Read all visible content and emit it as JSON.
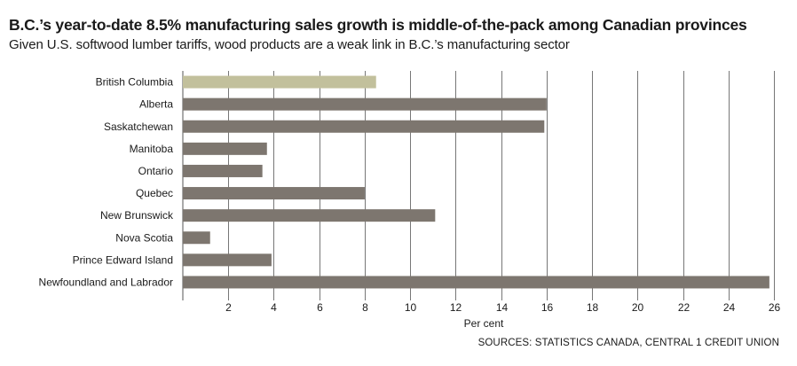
{
  "title": "B.C.’s year-to-date 8.5% manufacturing sales growth is middle-of-the-pack among Canadian provinces",
  "subtitle": "Given U.S. softwood lumber tariffs, wood products are a weak link in B.C.’s manufacturing sector",
  "source": "SOURCES: STATISTICS CANADA, CENTRAL 1 CREDIT UNION",
  "colors": {
    "highlight": "#c2c09c",
    "bar": "#7d766f",
    "grid": "#555555"
  },
  "chart_data": {
    "type": "bar",
    "orientation": "horizontal",
    "categories": [
      "British Columbia",
      "Alberta",
      "Saskatchewan",
      "Manitoba",
      "Ontario",
      "Quebec",
      "New Brunswick",
      "Nova Scotia",
      "Prince Edward Island",
      "Newfoundland and Labrador"
    ],
    "values": [
      8.5,
      16.0,
      15.9,
      3.7,
      3.5,
      8.0,
      11.1,
      1.2,
      3.9,
      25.8
    ],
    "highlight_category": "British Columbia",
    "xlabel": "Per cent",
    "xlim": [
      0,
      26
    ],
    "xticks": [
      2,
      4,
      6,
      8,
      10,
      12,
      14,
      16,
      18,
      20,
      22,
      24,
      26
    ],
    "grid": true
  }
}
